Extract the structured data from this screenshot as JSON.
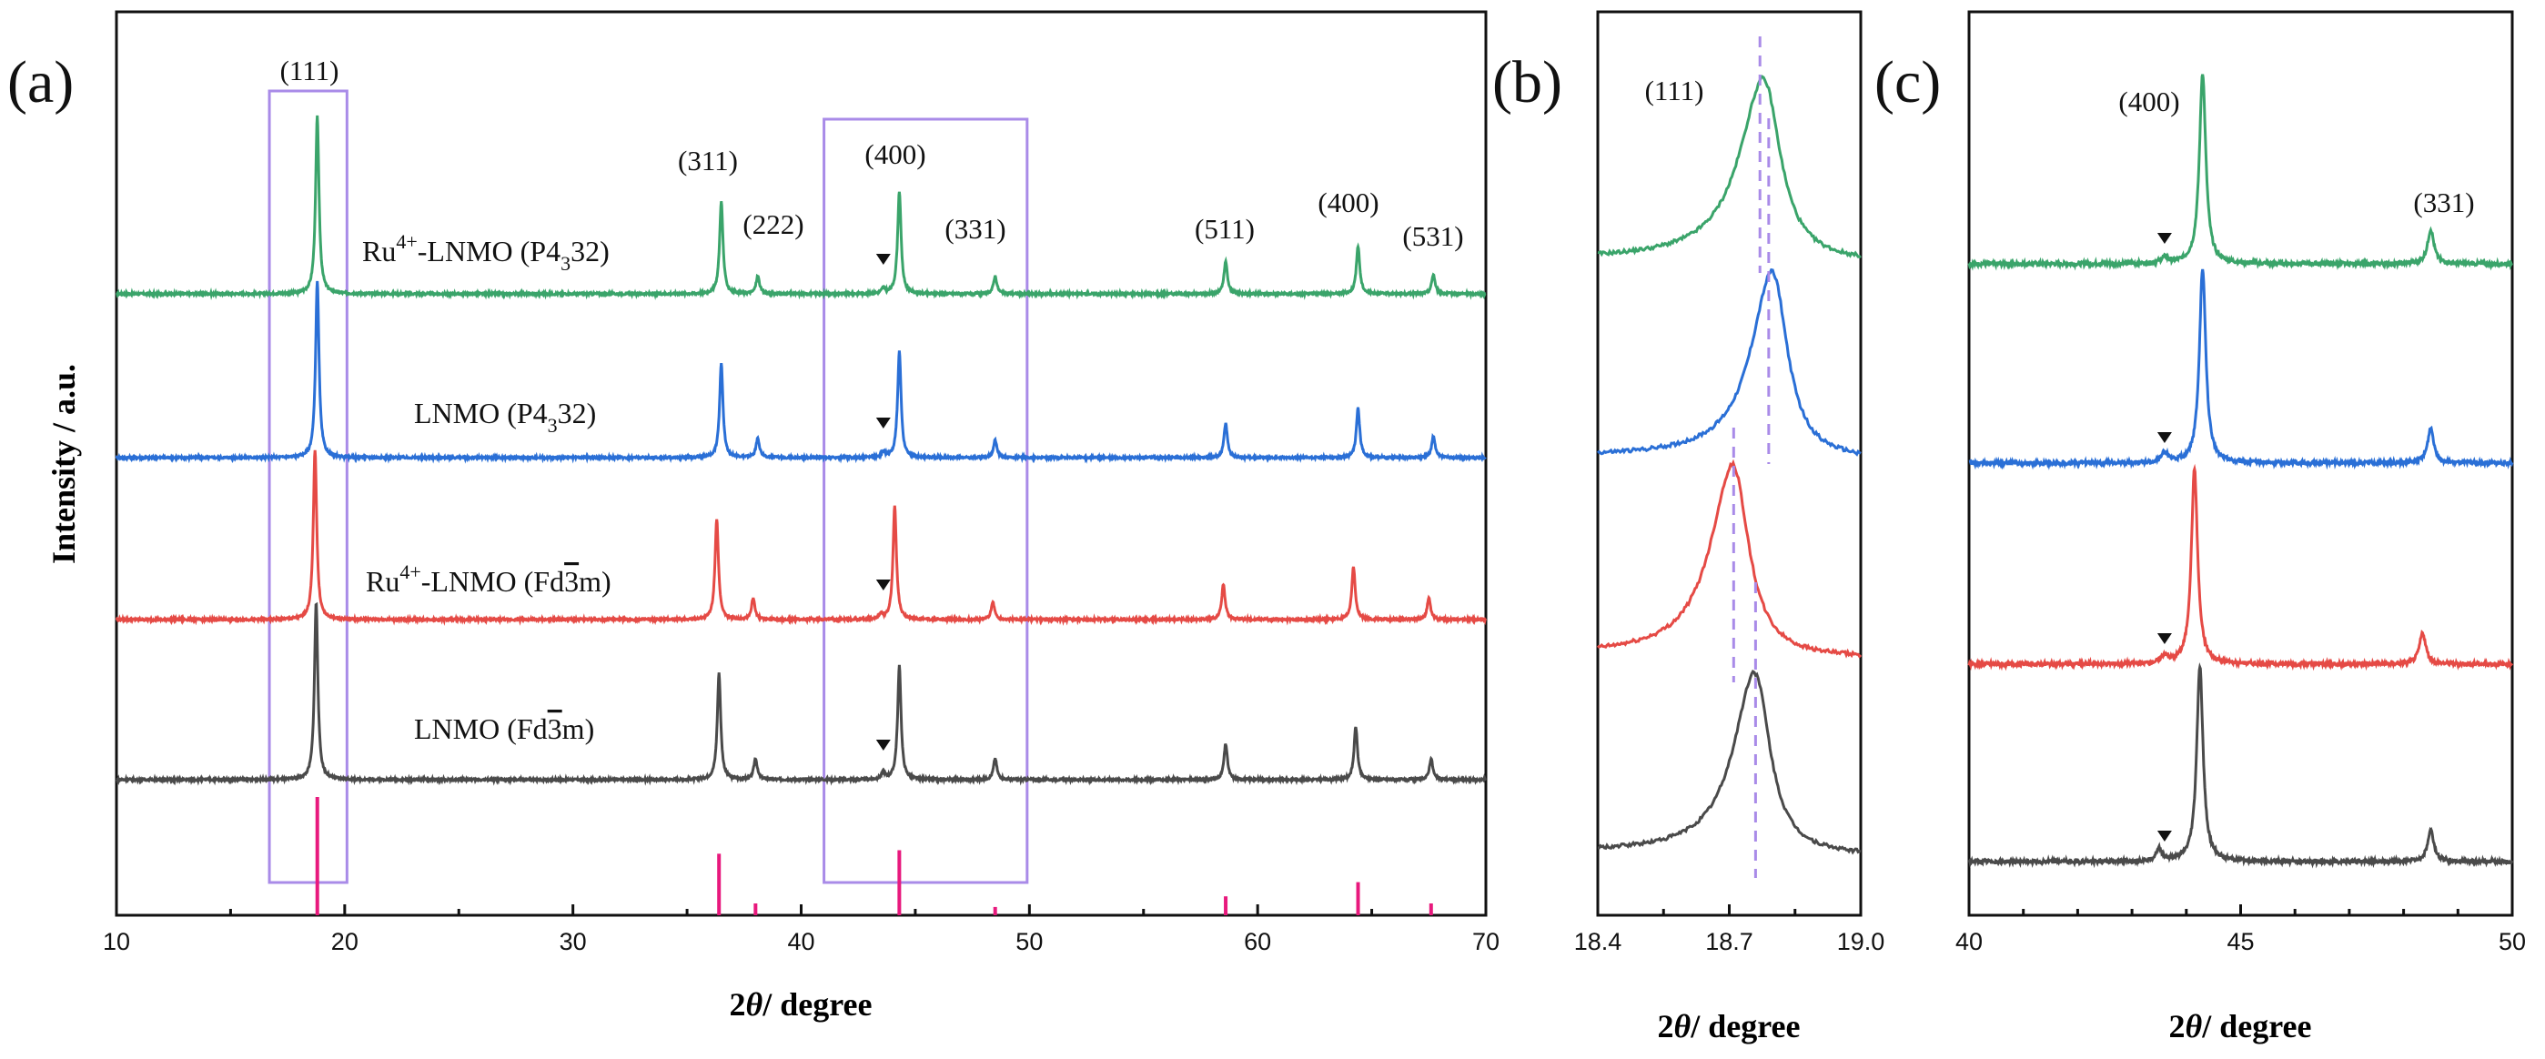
{
  "chart_data": [
    {
      "panel": "(a)",
      "type": "line",
      "xlabel": "2θ/ degree",
      "ylabel": "Intensity / a.u.",
      "xlim": [
        10,
        70
      ],
      "xticks": [
        "10",
        "20",
        "30",
        "40",
        "50",
        "60",
        "70"
      ],
      "peak_labels": [
        {
          "text": "(111)",
          "x": 18.8
        },
        {
          "text": "(311)",
          "x": 36.5
        },
        {
          "text": "(222)",
          "x": 38.1
        },
        {
          "text": "(400)",
          "x": 44.3
        },
        {
          "text": "(331)",
          "x": 48.5
        },
        {
          "text": "(511)",
          "x": 58.6
        },
        {
          "text": "(400)",
          "x": 64.4
        },
        {
          "text": "(531)",
          "x": 67.7
        }
      ],
      "highlight_boxes_x": [
        [
          16.7,
          20.1
        ],
        [
          41.0,
          49.9
        ]
      ],
      "series": [
        {
          "name": "Ru4+-LNMO (P4332)",
          "label_base": "Ru",
          "label_sup": "4+",
          "label_mid": "-LNMO (P4",
          "label_sub": "3",
          "label_end": "32)",
          "color": "#3aa46a",
          "offset": 3,
          "peaks": [
            {
              "x": 18.8,
              "h": 1.0
            },
            {
              "x": 36.5,
              "h": 0.52
            },
            {
              "x": 38.1,
              "h": 0.1
            },
            {
              "x": 43.6,
              "h": 0.03
            },
            {
              "x": 44.3,
              "h": 0.58
            },
            {
              "x": 48.5,
              "h": 0.1
            },
            {
              "x": 58.6,
              "h": 0.18
            },
            {
              "x": 64.4,
              "h": 0.27
            },
            {
              "x": 67.7,
              "h": 0.11
            }
          ]
        },
        {
          "name": "LNMO (P4332)",
          "label_base": "LNMO (P4",
          "label_sup": "",
          "label_mid": "",
          "label_sub": "3",
          "label_end": "32)",
          "color": "#2a6fd6",
          "offset": 2,
          "peaks": [
            {
              "x": 18.8,
              "h": 1.0
            },
            {
              "x": 36.5,
              "h": 0.53
            },
            {
              "x": 38.1,
              "h": 0.11
            },
            {
              "x": 43.6,
              "h": 0.03
            },
            {
              "x": 44.3,
              "h": 0.6
            },
            {
              "x": 48.5,
              "h": 0.1
            },
            {
              "x": 58.6,
              "h": 0.19
            },
            {
              "x": 64.4,
              "h": 0.28
            },
            {
              "x": 67.7,
              "h": 0.12
            }
          ]
        },
        {
          "name": "Ru4+-LNMO (Fd3m)",
          "label_base": "Ru",
          "label_sup": "4+",
          "label_mid": "-LNMO (Fd",
          "label_sub": "",
          "label_bar": "3",
          "label_end": "m)",
          "color": "#e54a45",
          "offset": 1,
          "peaks": [
            {
              "x": 18.7,
              "h": 0.96
            },
            {
              "x": 36.3,
              "h": 0.57
            },
            {
              "x": 37.9,
              "h": 0.12
            },
            {
              "x": 43.5,
              "h": 0.03
            },
            {
              "x": 44.1,
              "h": 0.64
            },
            {
              "x": 48.4,
              "h": 0.1
            },
            {
              "x": 58.5,
              "h": 0.2
            },
            {
              "x": 64.2,
              "h": 0.3
            },
            {
              "x": 67.5,
              "h": 0.12
            }
          ]
        },
        {
          "name": "LNMO (Fd3m)",
          "label_base": "LNMO (Fd",
          "label_sup": "",
          "label_mid": "",
          "label_sub": "",
          "label_bar": "3",
          "label_end": "m)",
          "color": "#4a4a4a",
          "offset": 0,
          "peaks": [
            {
              "x": 18.75,
              "h": 1.0
            },
            {
              "x": 36.4,
              "h": 0.6
            },
            {
              "x": 38.0,
              "h": 0.12
            },
            {
              "x": 43.6,
              "h": 0.04
            },
            {
              "x": 44.3,
              "h": 0.64
            },
            {
              "x": 48.5,
              "h": 0.12
            },
            {
              "x": 58.6,
              "h": 0.2
            },
            {
              "x": 64.3,
              "h": 0.3
            },
            {
              "x": 67.6,
              "h": 0.12
            }
          ]
        }
      ],
      "reference_bars": [
        {
          "x": 18.8,
          "h": 1.0
        },
        {
          "x": 36.4,
          "h": 0.52
        },
        {
          "x": 38.0,
          "h": 0.1
        },
        {
          "x": 44.3,
          "h": 0.55
        },
        {
          "x": 48.5,
          "h": 0.07
        },
        {
          "x": 58.6,
          "h": 0.16
        },
        {
          "x": 64.4,
          "h": 0.28
        },
        {
          "x": 67.6,
          "h": 0.1
        }
      ],
      "reference_color": "#e8197d",
      "marker_x": 43.6
    },
    {
      "panel": "(b)",
      "type": "line",
      "xlabel": "2θ/ degree",
      "xlim": [
        18.4,
        19.0
      ],
      "xticks": [
        "18.4",
        "18.7",
        "19.0"
      ],
      "peak_label": "(111)",
      "series": [
        {
          "name": "Ru4+-LNMO (P4332)",
          "color": "#3aa46a",
          "center": 18.78
        },
        {
          "name": "LNMO (P4332)",
          "color": "#2a6fd6",
          "center": 18.8
        },
        {
          "name": "Ru4+-LNMO (Fd3m)",
          "color": "#e54a45",
          "center": 18.71
        },
        {
          "name": "LNMO (Fd3m)",
          "color": "#4a4a4a",
          "center": 18.76
        }
      ],
      "dashed_lines_x": [
        18.77,
        18.79,
        18.71,
        18.76
      ]
    },
    {
      "panel": "(c)",
      "type": "line",
      "xlabel": "2θ/ degree",
      "xlim": [
        40,
        50
      ],
      "xticks": [
        "40",
        "45",
        "50"
      ],
      "peak_labels": [
        {
          "text": "(400)",
          "x": 44.3
        },
        {
          "text": "(331)",
          "x": 48.5
        }
      ],
      "series": [
        {
          "name": "Ru4+-LNMO (P4332)",
          "color": "#3aa46a",
          "peaks": [
            {
              "x": 43.6,
              "h": 0.03
            },
            {
              "x": 44.3,
              "h": 1.0
            },
            {
              "x": 48.5,
              "h": 0.18
            }
          ]
        },
        {
          "name": "LNMO (P4332)",
          "color": "#2a6fd6",
          "peaks": [
            {
              "x": 43.6,
              "h": 0.05
            },
            {
              "x": 44.3,
              "h": 1.0
            },
            {
              "x": 48.5,
              "h": 0.18
            }
          ]
        },
        {
          "name": "Ru4+-LNMO (Fd3m)",
          "color": "#e54a45",
          "peaks": [
            {
              "x": 43.6,
              "h": 0.04
            },
            {
              "x": 44.15,
              "h": 1.0
            },
            {
              "x": 48.35,
              "h": 0.16
            }
          ]
        },
        {
          "name": "LNMO (Fd3m)",
          "color": "#4a4a4a",
          "peaks": [
            {
              "x": 43.5,
              "h": 0.06
            },
            {
              "x": 44.25,
              "h": 1.0
            },
            {
              "x": 48.5,
              "h": 0.16
            }
          ]
        }
      ],
      "marker_x": 43.6
    }
  ],
  "figure": {
    "panel_labels": [
      "(a)",
      "(b)",
      "(c)"
    ],
    "xlabel_prefix": "2",
    "xlabel_theta": "θ",
    "xlabel_suffix": "/ degree",
    "ylabel": "Intensity / a.u.",
    "box_color": "#a98be8",
    "dash_color": "#a98be8"
  }
}
